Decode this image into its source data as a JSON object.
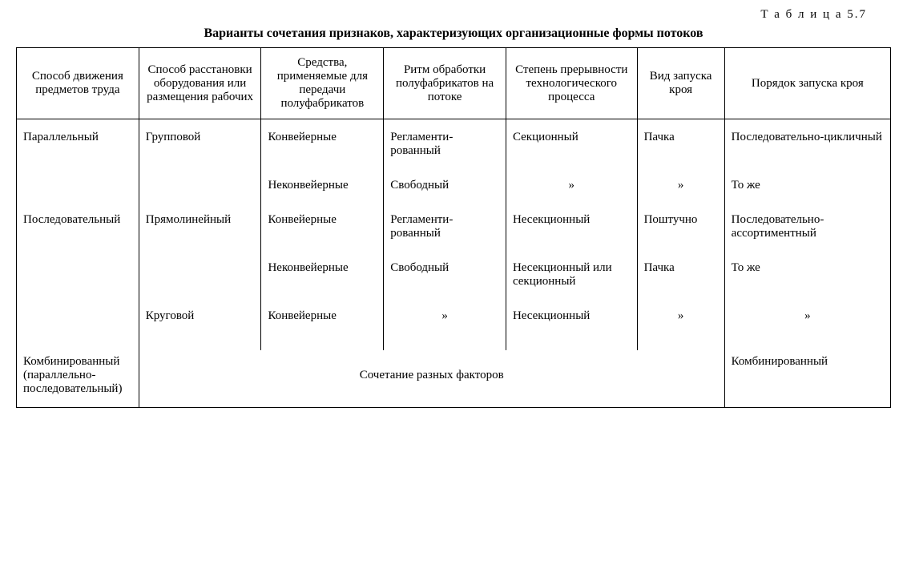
{
  "tableNumber": "Т а б л и ц а  5.7",
  "caption": "Варианты сочетания признаков, характеризующих организационные формы потоков",
  "headers": {
    "c1": "Способ движения предметов труда",
    "c2": "Способ расстановки оборудования или размещения рабочих",
    "c3": "Средства, применяемые для передачи полуфабрикатов",
    "c4": "Ритм обработки полуфабрикатов на потоке",
    "c5": "Степень прерывности технологического процесса",
    "c6": "Вид запуска кроя",
    "c7": "Порядок запуска кроя"
  },
  "rows": {
    "r1": {
      "c1": "Параллельный",
      "c2": "Групповой",
      "c3": "Конвейерные",
      "c4": "Регламенти­рованный",
      "c5": "Секционный",
      "c6": "Пачка",
      "c7": "Последовательно-цикличный"
    },
    "r2": {
      "c3": "Неконвейерные",
      "c4": "Свободный",
      "c5": "»",
      "c6": "»",
      "c7": "То же"
    },
    "r3": {
      "c1": "Последователь­ный",
      "c2": "Прямолинейный",
      "c3": "Конвейерные",
      "c4": "Регламенти­рованный",
      "c5": "Несекционный",
      "c6": "Поштучно",
      "c7": "Последовательно-ассортиментный"
    },
    "r4": {
      "c3": "Неконвейерные",
      "c4": "Свободный",
      "c5": "Несекционный или секционный",
      "c6": "Пачка",
      "c7": "То же"
    },
    "r5": {
      "c2": "Круговой",
      "c3": "Конвейерные",
      "c4": "»",
      "c5": "Несекционный",
      "c6": "»",
      "c7": "»"
    },
    "r6": {
      "c1": "Комбинирован­ный (парал­лельно-последо­вательный)",
      "merged": "Сочетание разных факторов",
      "c7": "Комбинированный"
    }
  }
}
